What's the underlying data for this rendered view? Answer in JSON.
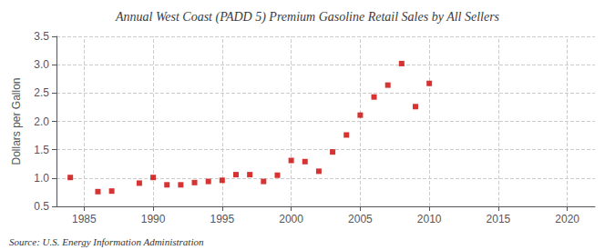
{
  "chart_data": {
    "type": "scatter",
    "title": "Annual West Coast (PADD 5) Premium Gasoline Retail Sales by All Sellers",
    "ylabel": "Dollars per Gallon",
    "annotations": [
      "Source: U.S. Energy Information Administration"
    ],
    "x": [
      1984,
      1986,
      1987,
      1989,
      1990,
      1991,
      1992,
      1993,
      1994,
      1995,
      1996,
      1997,
      1998,
      1999,
      2000,
      2001,
      2002,
      2003,
      2004,
      2005,
      2006,
      2007,
      2008,
      2009,
      2010
    ],
    "values": [
      1.01,
      0.76,
      0.77,
      0.91,
      1.01,
      0.88,
      0.88,
      0.92,
      0.94,
      0.96,
      1.06,
      1.06,
      0.94,
      1.05,
      1.31,
      1.29,
      1.12,
      1.46,
      1.76,
      2.11,
      2.43,
      2.64,
      3.02,
      2.26,
      2.67
    ],
    "color": "#cc0000",
    "marker": "square",
    "xlim": [
      1983,
      2022
    ],
    "xticks": [
      1985,
      1990,
      1995,
      2000,
      2005,
      2010,
      2015,
      2020
    ],
    "ylim": [
      0.5,
      3.5
    ],
    "yticks": [
      0.5,
      {
        "value": 1.0,
        "label": "1.0"
      },
      1.5,
      {
        "value": 2.0,
        "label": "2.0"
      },
      2.5,
      {
        "value": 3.0,
        "label": "3.0"
      },
      3.5
    ],
    "grid": true
  }
}
